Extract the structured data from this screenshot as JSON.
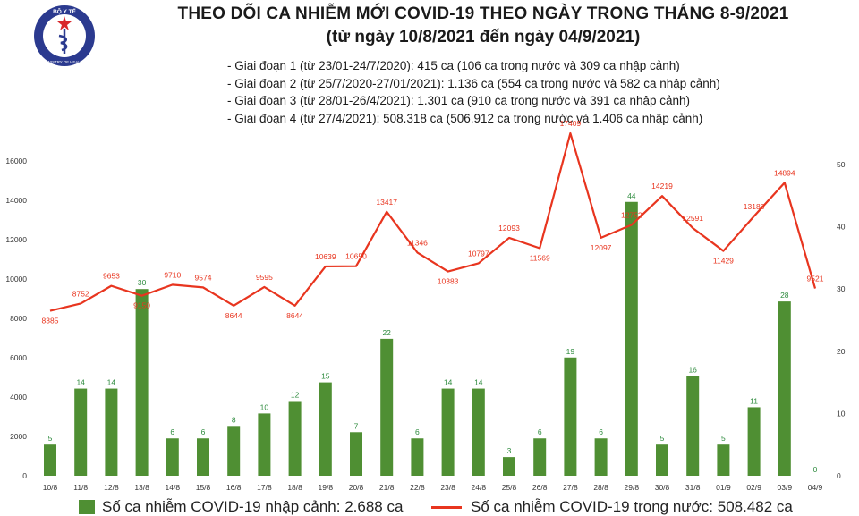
{
  "header": {
    "title_line1": "THEO DÕI CA NHIỄM MỚI COVID-19 THEO NGÀY TRONG THÁNG 8-9/2021",
    "title_line2": "(từ ngày 10/8/2021 đến ngày 04/9/2021)",
    "stages": [
      "- Giai đoạn 1 (từ 23/01-24/7/2020): 415 ca (106 ca trong nước và 309 ca nhập cảnh)",
      "- Giai đoạn 2 (từ 25/7/2020-27/01/2021): 1.136 ca (554 ca trong nước và 582 ca nhập cảnh)",
      "- Giai đoạn 3 (từ 28/01-26/4/2021): 1.301 ca (910 ca trong nước và 391 ca nhập cảnh)",
      "- Giai đoạn 4 (từ 27/4/2021): 508.318 ca (506.912 ca trong nước và 1.406 ca nhập cảnh)"
    ]
  },
  "logo": {
    "top_text": "BỘ Y TẾ",
    "bottom_text": "MINISTRY OF HEALTH",
    "colors": {
      "circle": "#2b3a8f",
      "star": "#d8262b"
    }
  },
  "legend": {
    "bar_label": "Số ca nhiễm COVID-19 nhập cảnh: 2.688 ca",
    "line_label": "Số ca nhiễm COVID-19 trong nước: 508.482 ca"
  },
  "chart_data": {
    "type": "bar+line",
    "categories": [
      "10/8",
      "11/8",
      "12/8",
      "13/8",
      "14/8",
      "15/8",
      "16/8",
      "17/8",
      "18/8",
      "19/8",
      "20/8",
      "21/8",
      "22/8",
      "23/8",
      "24/8",
      "25/8",
      "26/8",
      "27/8",
      "28/8",
      "29/8",
      "30/8",
      "31/8",
      "01/9",
      "02/9",
      "03/9",
      "04/9"
    ],
    "series": [
      {
        "name": "Số ca nhiễm COVID-19 nhập cảnh: 2.688 ca",
        "type": "bar",
        "axis": "right",
        "color": "#4f8f33",
        "values": [
          5,
          14,
          14,
          30,
          6,
          6,
          8,
          10,
          12,
          15,
          7,
          22,
          6,
          14,
          14,
          3,
          6,
          19,
          6,
          44,
          5,
          16,
          5,
          11,
          28,
          0
        ]
      },
      {
        "name": "Số ca nhiễm COVID-19 trong nước: 508.482 ca",
        "type": "line",
        "axis": "left",
        "color": "#e8351f",
        "values": [
          8385,
          8752,
          9653,
          9150,
          9710,
          9574,
          8644,
          9595,
          8644,
          10639,
          10650,
          13417,
          11346,
          10383,
          10797,
          12093,
          11569,
          17409,
          12097,
          12752,
          14219,
          12591,
          11429,
          13186,
          14894,
          9521
        ]
      }
    ],
    "y_left": {
      "ticks": [
        0,
        2000,
        4000,
        6000,
        8000,
        10000,
        12000,
        14000,
        16000
      ],
      "range": [
        0,
        16000
      ]
    },
    "y_right": {
      "ticks": [
        0,
        10,
        20,
        30,
        40,
        50
      ],
      "range": [
        0,
        50
      ]
    },
    "line_label_colors": {
      "line_labels": "#e8351f",
      "bar_labels": "#2e8b3e"
    },
    "grid": false,
    "legend_position": "bottom"
  }
}
